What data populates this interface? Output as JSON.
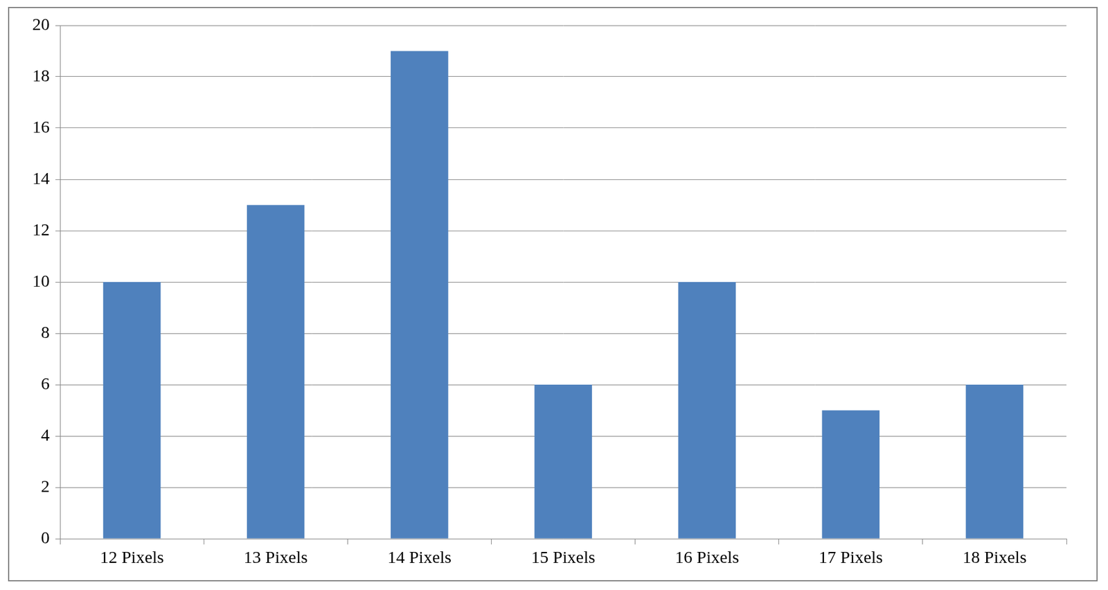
{
  "chart_data": {
    "type": "bar",
    "categories": [
      "12 Pixels",
      "13 Pixels",
      "14 Pixels",
      "15 Pixels",
      "16 Pixels",
      "17 Pixels",
      "18 Pixels"
    ],
    "values": [
      10,
      13,
      19,
      6,
      10,
      5,
      6
    ],
    "color": "#4f81bd",
    "ylim": [
      0,
      20
    ],
    "yticks": [
      0,
      2,
      4,
      6,
      8,
      10,
      12,
      14,
      16,
      18,
      20
    ],
    "grid": true
  }
}
